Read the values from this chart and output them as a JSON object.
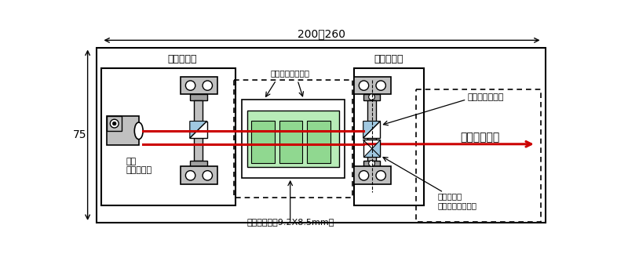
{
  "fig_width": 8.0,
  "fig_height": 3.38,
  "title_dim_label": "200～260",
  "side_dim_label": "75",
  "label_nyusha": "入射光学系",
  "label_shusha": "出射光学系",
  "label_taper": "テーパー付石英板",
  "label_crystal": "水晶振動子（9.2X8.5mm）",
  "label_prism": "プリズムミラー",
  "label_beam": "キューブ型\nビームスプリッタ",
  "label_nyusha_laser": "入射\nレーザー光",
  "label_shusha_laser": "出射レーザー",
  "arrow_color": "#cc0000",
  "light_gray": "#c0c0c0",
  "mid_gray": "#a0a0a0",
  "green_fill": "#b8ecb8",
  "green_inner": "#90d890",
  "blue_color": "#a0c8e0"
}
